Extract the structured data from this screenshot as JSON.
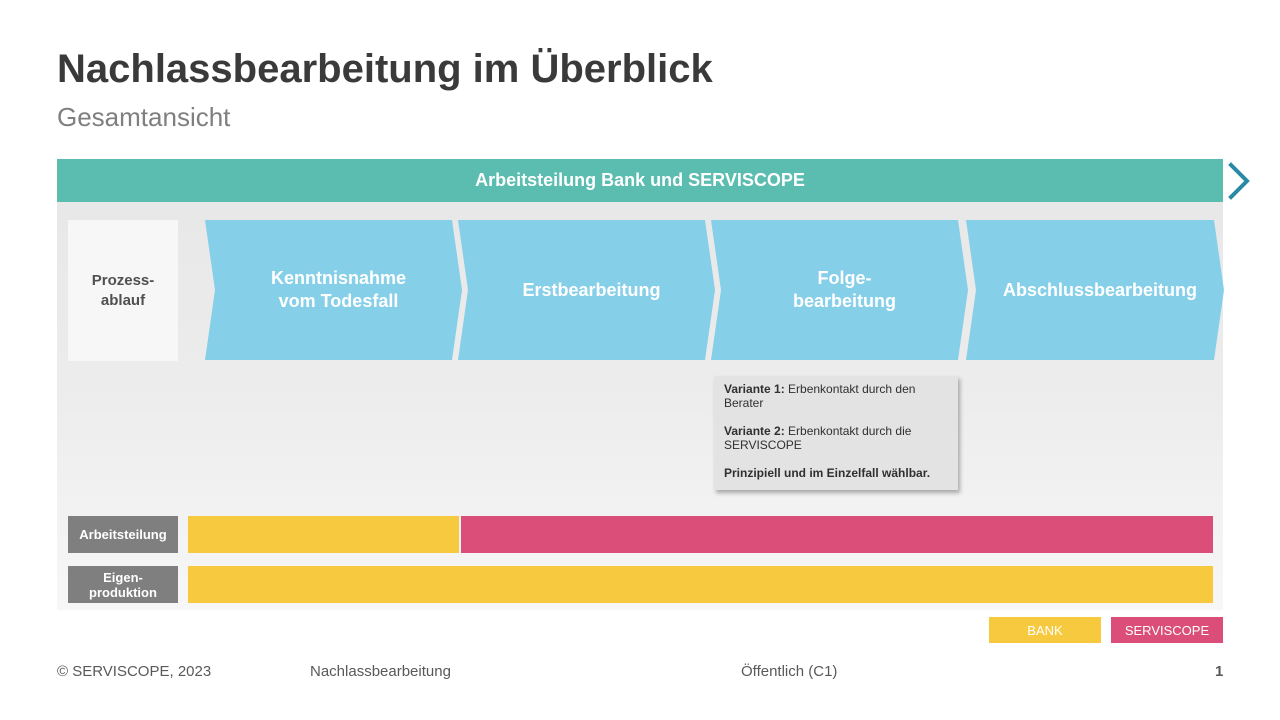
{
  "title": "Nachlassbearbeitung im Überblick",
  "subtitle": "Gesamtansicht",
  "banner": "Arbeitsteilung Bank und SERVISCOPE",
  "process_label": "Prozess-\nablauf",
  "stages": [
    "Kenntnisnahme\nvom Todesfall",
    "Erstbearbeitung",
    "Folge-\nbearbeitung",
    "Abschlussbearbeitung"
  ],
  "note": {
    "v1_label": "Variante 1:",
    "v1_text": " Erbenkontakt durch den Berater",
    "v2_label": "Variante 2:",
    "v2_text": " Erbenkontakt durch die SERVISCOPE",
    "summary": "Prinzipiell und im Einzelfall wählbar."
  },
  "rows": {
    "arbeitsteilung": "Arbeitsteilung",
    "eigenproduktion": "Eigen-\nproduktion"
  },
  "legend": {
    "bank": "BANK",
    "serviscope": "SERVISCOPE"
  },
  "colors": {
    "bank": "#f7c93f",
    "serviscope": "#dc4e7a",
    "banner": "#5bbcb0",
    "stage": "#86cfe8",
    "chevron": "#2a8aa6"
  },
  "footer": {
    "copyright": "© SERVISCOPE, 2023",
    "topic": "Nachlassbearbeitung",
    "classification": "Öffentlich  (C1)",
    "page": "1"
  }
}
